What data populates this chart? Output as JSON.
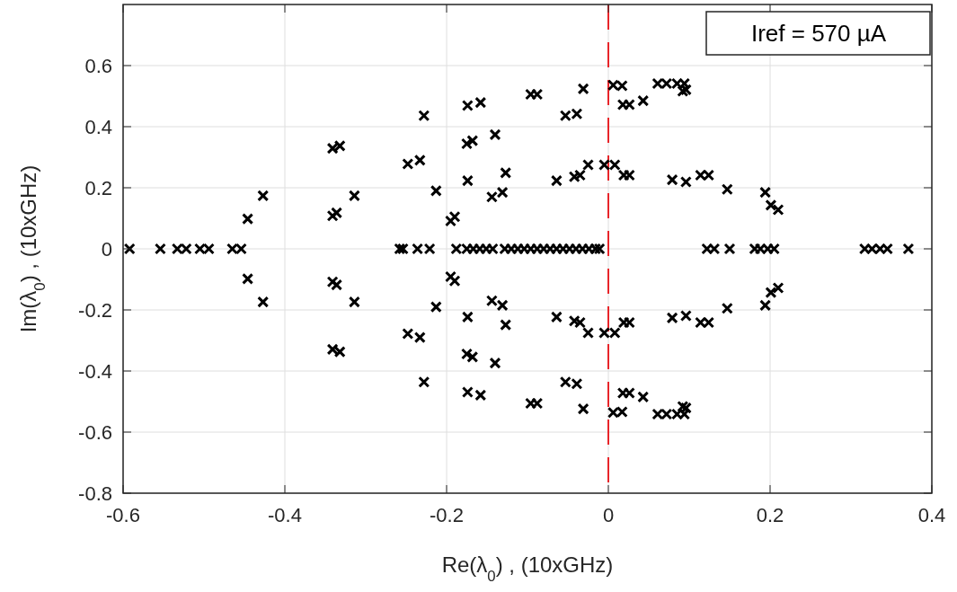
{
  "chart_data": {
    "type": "scatter",
    "xlabel": "Re(λ$_{0}$) , (10xGHz)",
    "ylabel": "Im(λ$_{0}$) , (10xGHz)",
    "annotations": [
      "Iref = 570 µA"
    ],
    "xlim": [
      -0.6,
      0.4
    ],
    "xticks": [
      -0.6,
      -0.4,
      -0.2,
      0,
      0.2,
      0.4
    ],
    "ylim": [
      -0.8,
      0.8
    ],
    "yticks": [
      -0.8,
      -0.6,
      -0.4,
      -0.2,
      0,
      0.2,
      0.4,
      0.6
    ],
    "grid": true,
    "marker": "cross",
    "ref_lines": [
      {
        "axis": "x",
        "value": 0,
        "color": "#e8252a",
        "line_style": "dashed"
      }
    ],
    "series": [
      {
        "color": "#000000",
        "x": [
          -0.592,
          -0.554,
          -0.533,
          -0.522,
          -0.505,
          -0.494,
          -0.465,
          -0.454,
          -0.258,
          -0.254,
          -0.236,
          -0.221,
          -0.188,
          -0.175,
          -0.167,
          -0.159,
          -0.151,
          -0.143,
          -0.128,
          -0.12,
          -0.112,
          -0.104,
          -0.096,
          -0.088,
          -0.08,
          -0.072,
          -0.064,
          -0.056,
          -0.048,
          -0.04,
          -0.032,
          -0.024,
          -0.016,
          -0.011,
          0.122,
          0.131,
          0.15,
          0.181,
          0.188,
          0.197,
          0.205,
          0.317,
          0.326,
          0.336,
          0.345,
          0.371
        ],
        "values": [
          0,
          0,
          0,
          0,
          0,
          0,
          0,
          0,
          0,
          0,
          0,
          0,
          0,
          0,
          0,
          0,
          0,
          0,
          0,
          0,
          0,
          0,
          0,
          0,
          0,
          0,
          0,
          0,
          0,
          0,
          0,
          0,
          0,
          0,
          0,
          0,
          0,
          0,
          0,
          0,
          0,
          0,
          0,
          0,
          0,
          0
        ]
      },
      {
        "color": "#000000",
        "x": [
          -0.446,
          -0.427,
          -0.341,
          -0.336,
          -0.341,
          -0.332,
          -0.314,
          -0.228,
          -0.248,
          -0.233,
          -0.213,
          -0.195,
          -0.19,
          -0.174,
          -0.158,
          -0.175,
          -0.168,
          -0.14,
          -0.174,
          -0.127,
          -0.144,
          -0.131,
          -0.096,
          -0.088,
          -0.031,
          -0.053,
          -0.039,
          0.006,
          0.017,
          0.018,
          0.026,
          0.043,
          0.061,
          0.072,
          0.085,
          0.094,
          0.092,
          0.096,
          -0.064,
          -0.042,
          -0.035,
          -0.025,
          -0.005,
          0.008,
          0.019,
          0.026,
          0.079,
          0.096,
          0.114,
          0.124,
          0.147,
          0.194,
          0.201,
          0.21
        ],
        "values": [
          0.098,
          0.174,
          0.108,
          0.118,
          0.329,
          0.337,
          0.174,
          0.436,
          0.278,
          0.29,
          0.19,
          0.091,
          0.105,
          0.469,
          0.479,
          0.344,
          0.354,
          0.374,
          0.223,
          0.249,
          0.17,
          0.185,
          0.506,
          0.506,
          0.524,
          0.436,
          0.442,
          0.536,
          0.534,
          0.472,
          0.472,
          0.485,
          0.541,
          0.541,
          0.541,
          0.541,
          0.516,
          0.521,
          0.223,
          0.236,
          0.241,
          0.275,
          0.275,
          0.275,
          0.241,
          0.241,
          0.226,
          0.219,
          0.241,
          0.241,
          0.195,
          0.185,
          0.143,
          0.128
        ]
      },
      {
        "color": "#000000",
        "x": [
          -0.446,
          -0.427,
          -0.341,
          -0.336,
          -0.341,
          -0.332,
          -0.314,
          -0.228,
          -0.248,
          -0.233,
          -0.213,
          -0.195,
          -0.19,
          -0.174,
          -0.158,
          -0.175,
          -0.168,
          -0.14,
          -0.174,
          -0.127,
          -0.144,
          -0.131,
          -0.096,
          -0.088,
          -0.031,
          -0.053,
          -0.039,
          0.006,
          0.017,
          0.018,
          0.026,
          0.043,
          0.061,
          0.072,
          0.085,
          0.094,
          0.092,
          0.096,
          -0.064,
          -0.042,
          -0.035,
          -0.025,
          -0.005,
          0.008,
          0.019,
          0.026,
          0.079,
          0.096,
          0.114,
          0.124,
          0.147,
          0.194,
          0.201,
          0.21
        ],
        "values": [
          -0.098,
          -0.174,
          -0.108,
          -0.118,
          -0.329,
          -0.337,
          -0.174,
          -0.436,
          -0.278,
          -0.29,
          -0.19,
          -0.091,
          -0.105,
          -0.469,
          -0.479,
          -0.344,
          -0.354,
          -0.374,
          -0.223,
          -0.249,
          -0.17,
          -0.185,
          -0.506,
          -0.506,
          -0.524,
          -0.436,
          -0.442,
          -0.536,
          -0.534,
          -0.472,
          -0.472,
          -0.485,
          -0.541,
          -0.541,
          -0.541,
          -0.541,
          -0.516,
          -0.521,
          -0.223,
          -0.236,
          -0.241,
          -0.275,
          -0.275,
          -0.275,
          -0.241,
          -0.241,
          -0.226,
          -0.219,
          -0.241,
          -0.241,
          -0.195,
          -0.185,
          -0.143,
          -0.128
        ]
      }
    ]
  }
}
